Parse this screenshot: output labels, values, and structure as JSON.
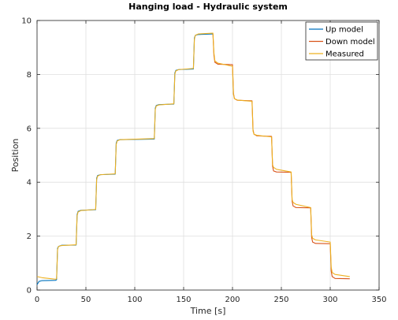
{
  "chart_data": {
    "type": "line",
    "title": "Hanging load - Hydraulic system",
    "xlabel": "Time [s]",
    "ylabel": "Position",
    "xlim": [
      0,
      350
    ],
    "ylim": [
      0,
      10
    ],
    "xticks": [
      0,
      50,
      100,
      150,
      200,
      250,
      300,
      350
    ],
    "yticks": [
      0,
      2,
      4,
      6,
      8,
      10
    ],
    "grid": true,
    "legend_position": "top-right",
    "series": [
      {
        "name": "Up model",
        "color": "#0072BD",
        "points": [
          [
            0,
            0.2
          ],
          [
            2,
            0.32
          ],
          [
            5,
            0.35
          ],
          [
            19,
            0.36
          ],
          [
            20,
            0.38
          ],
          [
            21,
            1.55
          ],
          [
            22,
            1.62
          ],
          [
            25,
            1.66
          ],
          [
            40,
            1.67
          ],
          [
            41,
            2.8
          ],
          [
            42,
            2.92
          ],
          [
            45,
            2.96
          ],
          [
            60,
            2.98
          ],
          [
            61,
            4.15
          ],
          [
            62,
            4.25
          ],
          [
            65,
            4.28
          ],
          [
            80,
            4.3
          ],
          [
            81,
            5.45
          ],
          [
            82,
            5.55
          ],
          [
            85,
            5.58
          ],
          [
            120,
            5.6
          ],
          [
            121,
            6.75
          ],
          [
            122,
            6.85
          ],
          [
            125,
            6.88
          ],
          [
            140,
            6.9
          ],
          [
            141,
            8.05
          ],
          [
            142,
            8.15
          ],
          [
            145,
            8.18
          ],
          [
            160,
            8.2
          ],
          [
            161,
            9.35
          ],
          [
            162,
            9.45
          ],
          [
            165,
            9.48
          ],
          [
            180,
            9.5
          ]
        ]
      },
      {
        "name": "Down model",
        "color": "#D95319",
        "points": [
          [
            180,
            9.5
          ],
          [
            181,
            8.7
          ],
          [
            182,
            8.45
          ],
          [
            185,
            8.38
          ],
          [
            200,
            8.36
          ],
          [
            201,
            7.3
          ],
          [
            202,
            7.1
          ],
          [
            205,
            7.04
          ],
          [
            220,
            7.02
          ],
          [
            221,
            5.95
          ],
          [
            222,
            5.78
          ],
          [
            225,
            5.72
          ],
          [
            240,
            5.7
          ],
          [
            241,
            4.6
          ],
          [
            242,
            4.42
          ],
          [
            245,
            4.38
          ],
          [
            260,
            4.37
          ],
          [
            261,
            3.3
          ],
          [
            262,
            3.12
          ],
          [
            265,
            3.06
          ],
          [
            280,
            3.05
          ],
          [
            281,
            1.95
          ],
          [
            282,
            1.78
          ],
          [
            285,
            1.73
          ],
          [
            300,
            1.72
          ],
          [
            301,
            0.7
          ],
          [
            302,
            0.5
          ],
          [
            305,
            0.43
          ],
          [
            320,
            0.42
          ]
        ]
      },
      {
        "name": "Measured",
        "color": "#EDB120",
        "points": [
          [
            0,
            0.5
          ],
          [
            5,
            0.46
          ],
          [
            19,
            0.4
          ],
          [
            20,
            0.42
          ],
          [
            21,
            1.5
          ],
          [
            22,
            1.62
          ],
          [
            25,
            1.65
          ],
          [
            40,
            1.68
          ],
          [
            41,
            2.75
          ],
          [
            42,
            2.9
          ],
          [
            45,
            2.95
          ],
          [
            60,
            2.99
          ],
          [
            61,
            4.1
          ],
          [
            62,
            4.23
          ],
          [
            65,
            4.28
          ],
          [
            80,
            4.31
          ],
          [
            81,
            5.4
          ],
          [
            82,
            5.53
          ],
          [
            85,
            5.58
          ],
          [
            120,
            5.62
          ],
          [
            121,
            6.7
          ],
          [
            122,
            6.83
          ],
          [
            125,
            6.87
          ],
          [
            140,
            6.91
          ],
          [
            141,
            8.0
          ],
          [
            142,
            8.13
          ],
          [
            145,
            8.18
          ],
          [
            160,
            8.22
          ],
          [
            161,
            9.3
          ],
          [
            162,
            9.45
          ],
          [
            165,
            9.5
          ],
          [
            180,
            9.53
          ],
          [
            181,
            8.8
          ],
          [
            182,
            8.5
          ],
          [
            185,
            8.42
          ],
          [
            200,
            8.3
          ],
          [
            201,
            7.25
          ],
          [
            202,
            7.1
          ],
          [
            205,
            7.05
          ],
          [
            220,
            7.0
          ],
          [
            221,
            5.9
          ],
          [
            222,
            5.78
          ],
          [
            225,
            5.74
          ],
          [
            240,
            5.68
          ],
          [
            241,
            4.65
          ],
          [
            242,
            4.55
          ],
          [
            245,
            4.48
          ],
          [
            260,
            4.38
          ],
          [
            261,
            3.35
          ],
          [
            262,
            3.25
          ],
          [
            265,
            3.18
          ],
          [
            280,
            3.06
          ],
          [
            281,
            2.05
          ],
          [
            282,
            1.92
          ],
          [
            285,
            1.86
          ],
          [
            300,
            1.78
          ],
          [
            301,
            0.85
          ],
          [
            302,
            0.65
          ],
          [
            305,
            0.58
          ],
          [
            320,
            0.5
          ]
        ]
      }
    ]
  }
}
